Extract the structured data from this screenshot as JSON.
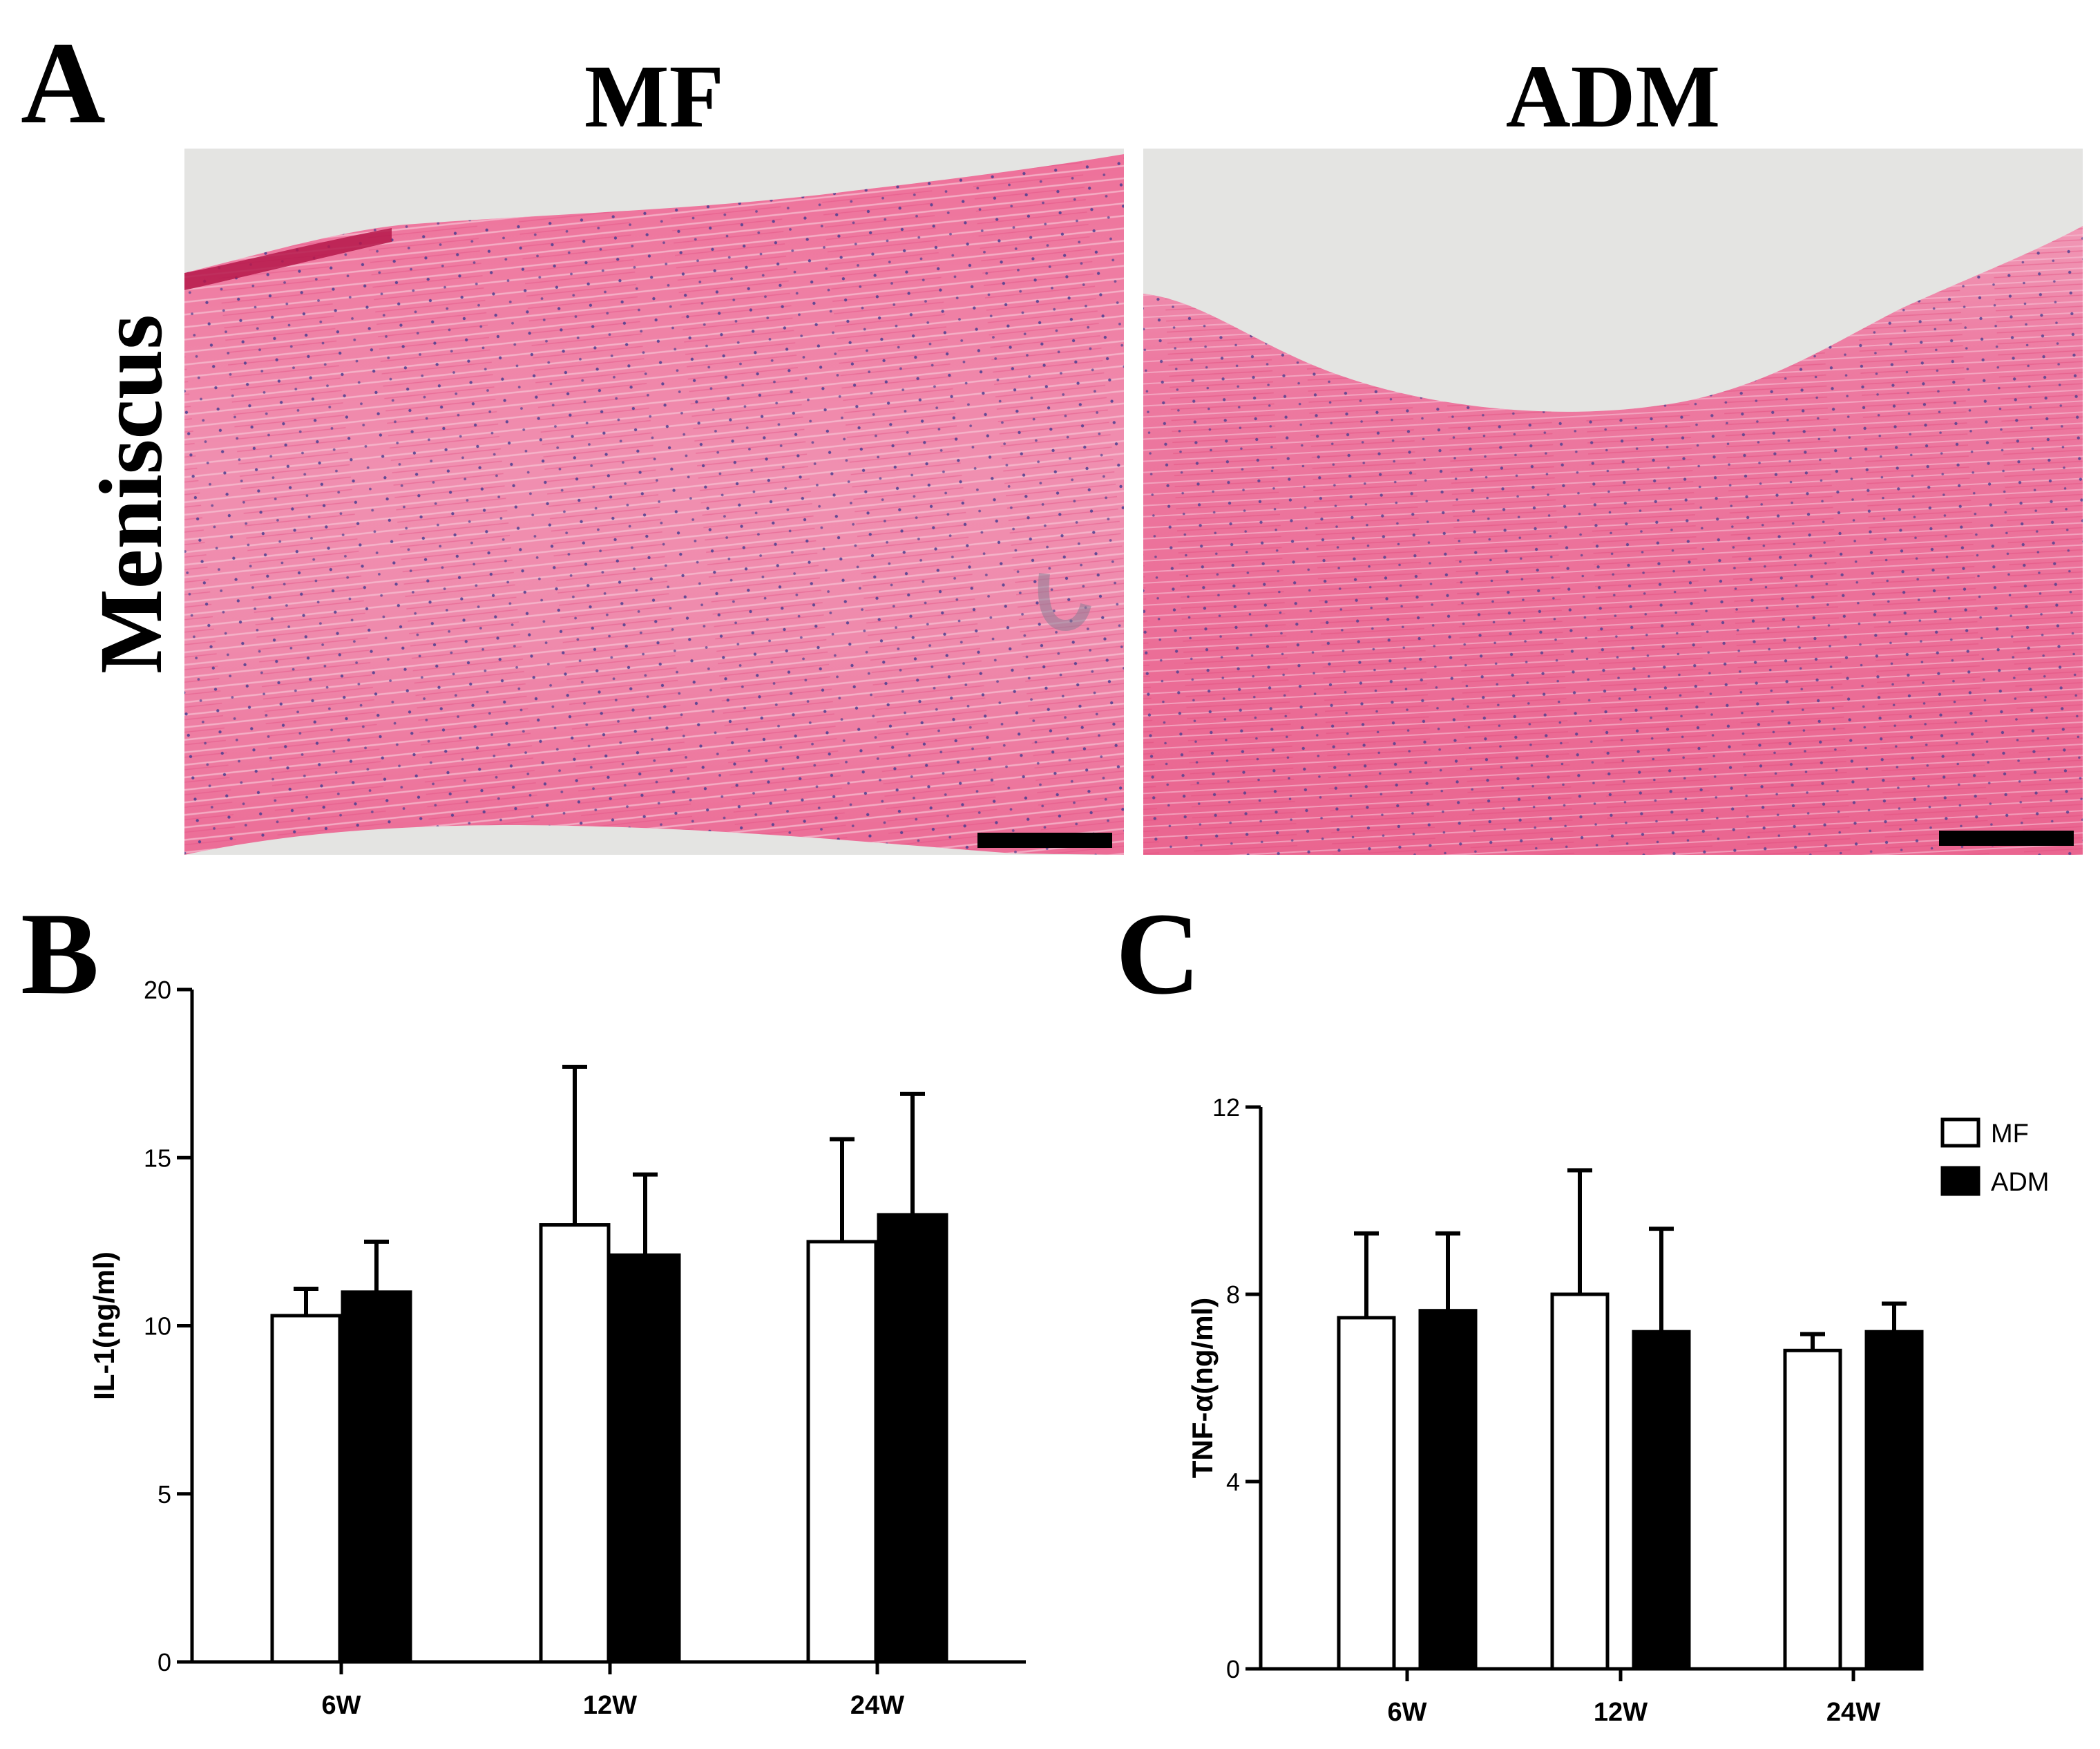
{
  "figure": {
    "panel_labels": {
      "a": "A",
      "b": "B",
      "c": "C"
    },
    "micrograph_columns": [
      "MF",
      "ADM"
    ],
    "micrograph_row_label": "Meniscus",
    "stain_colors": {
      "tissue": "#e9628f",
      "tissue_light": "#f3a9c1",
      "background": "#e4e4e2",
      "nuclei": "#4a3d8f",
      "scale_bar": "#000000"
    }
  },
  "chart_data": [
    {
      "type": "bar",
      "panel": "B",
      "ylabel": "IL-1(ng/ml)",
      "xlabel": "",
      "categories": [
        "6W",
        "12W",
        "24W"
      ],
      "ylim": [
        0,
        20
      ],
      "yticks": [
        "0",
        "5",
        "10",
        "15",
        "20"
      ],
      "series": [
        {
          "name": "MF",
          "values": [
            10.3,
            13.0,
            12.5
          ],
          "errors": [
            0.8,
            4.7,
            3.05
          ],
          "fill": "#ffffff"
        },
        {
          "name": "ADM",
          "values": [
            11.0,
            12.1,
            13.3
          ],
          "errors": [
            1.5,
            2.4,
            3.6
          ],
          "fill": "#000000"
        }
      ],
      "legend": false
    },
    {
      "type": "bar",
      "panel": "C",
      "ylabel": "TNF-α(ng/ml)",
      "xlabel": "",
      "categories": [
        "6W",
        "12W",
        "24W"
      ],
      "ylim": [
        0,
        12
      ],
      "yticks": [
        "0",
        "4",
        "8",
        "12"
      ],
      "series": [
        {
          "name": "MF",
          "values": [
            7.5,
            8.0,
            6.8
          ],
          "errors": [
            1.8,
            2.65,
            0.35
          ],
          "fill": "#ffffff"
        },
        {
          "name": "ADM",
          "values": [
            7.65,
            7.2,
            7.2
          ],
          "errors": [
            1.65,
            2.2,
            0.6
          ],
          "fill": "#000000"
        }
      ],
      "legend": true,
      "legend_position": "top-right"
    }
  ]
}
